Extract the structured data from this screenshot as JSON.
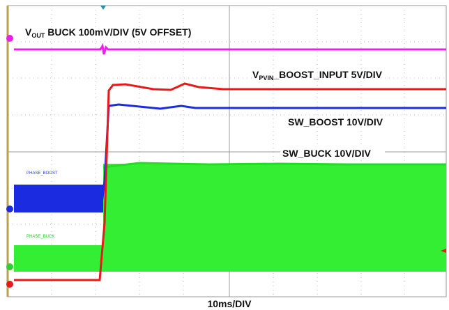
{
  "labels": {
    "vout": {
      "main": "V",
      "sub": "OUT",
      "rest": " BUCK 100mV/DIV (5V OFFSET)"
    },
    "vpvin": {
      "main": "V",
      "sub": "PVIN",
      "rest": "_BOOST_INPUT 5V/DIV"
    },
    "sw_boost": "SW_BOOST 10V/DIV",
    "sw_buck": "SW_BUCK 10V/DIV",
    "phase_boost": "PHASE_BOOST",
    "phase_buck": "PHASE_BUCK",
    "timebase": "10ms/DIV"
  }
}
